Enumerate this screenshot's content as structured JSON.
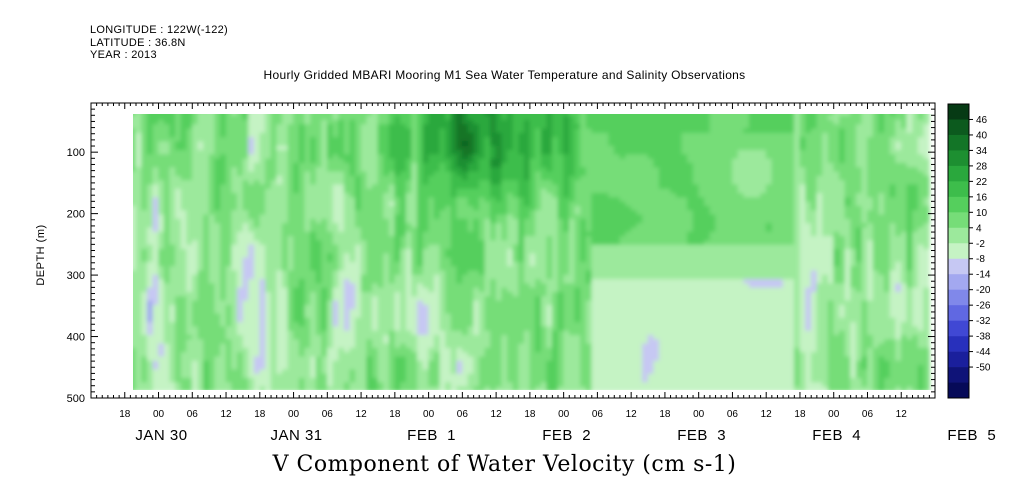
{
  "header": {
    "longitude": "LONGITUDE : 122W(-122)",
    "latitude": "LATITUDE : 36.8N",
    "year": "YEAR : 2013"
  },
  "title": "Hourly Gridded MBARI Mooring M1 Sea Water Temperature and Salinity Observations",
  "variable_label": "V Component of Water Velocity (cm s-1)",
  "chart_data": {
    "type": "heatmap",
    "title": "Hourly Gridded MBARI Mooring M1 Sea Water Temperature and Salinity Observations",
    "xlabel": "",
    "ylabel": "DEPTH (m)",
    "colorbar_label": "V Component of Water Velocity (cm s-1)",
    "x_start": "2013-01-30 12:00",
    "x_end": "2013-02-05 18:00",
    "data_x_start": "2013-01-30 14:00",
    "data_x_end": "2013-02-05 17:00",
    "ylim": [
      500,
      20
    ],
    "y_ticks": [
      100,
      200,
      300,
      400,
      500
    ],
    "x_hour_ticks": [
      "18",
      "00",
      "06",
      "12",
      "18",
      "00",
      "06",
      "12",
      "18",
      "00",
      "06",
      "12",
      "18",
      "00",
      "06",
      "12",
      "18",
      "00",
      "06",
      "12",
      "18",
      "00",
      "06",
      "12"
    ],
    "x_day_labels": [
      "JAN 30",
      "JAN 31",
      "FEB  1",
      "FEB  2",
      "FEB  3",
      "FEB  4",
      "FEB  5"
    ],
    "colorbar_levels": [
      "46",
      "40",
      "34",
      "28",
      "22",
      "16",
      "10",
      "4",
      "-2",
      "-8",
      "-14",
      "-20",
      "-26",
      "-32",
      "-38",
      "-44",
      "-50"
    ],
    "colorbar_colors": [
      "#063a14",
      "#0c5a1e",
      "#137527",
      "#1d8f31",
      "#2aa83d",
      "#3dbd4b",
      "#55cf5d",
      "#76dd78",
      "#9ce99c",
      "#c5f3c4",
      "#c6c8f3",
      "#a3a8f0",
      "#8088ea",
      "#6068e2",
      "#4048d4",
      "#2830bc",
      "#1a1f9c",
      "#0f1378",
      "#060a58"
    ],
    "description": "V velocity mostly weak positive (light green) over depths 20-480 m, strong northward flow (dark green, up to ~40 cm/s) in upper 250 m near FEB 2-3, weak southward (purple) flow at depth after FEB 3 and in vertical streaks near JAN 31 and FEB 4."
  }
}
